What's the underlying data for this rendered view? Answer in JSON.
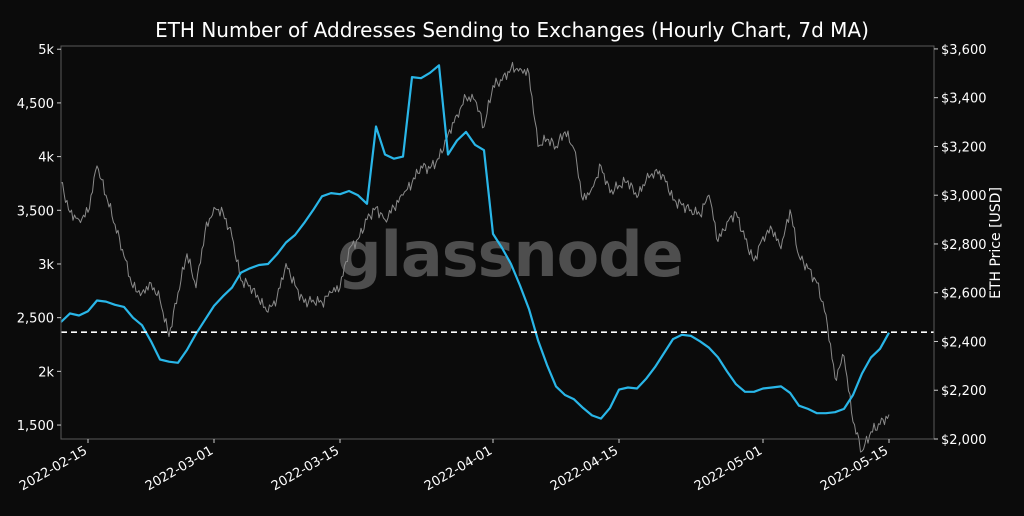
{
  "chart_data": {
    "type": "line",
    "title": "ETH Number of Addresses Sending to Exchanges (Hourly Chart, 7d MA)",
    "xlabel": "",
    "ylabel_left": "",
    "ylabel_right": "ETH Price [USD]",
    "watermark": "glassnode",
    "x_range": [
      "2022-02-12",
      "2022-05-20"
    ],
    "x_ticks": [
      "2022-02-15",
      "2022-03-01",
      "2022-03-15",
      "2022-04-01",
      "2022-04-15",
      "2022-05-01",
      "2022-05-15"
    ],
    "y_left": {
      "range": [
        1370,
        5030
      ],
      "ticks": [
        {
          "value": 1500,
          "label": "1,500"
        },
        {
          "value": 2000,
          "label": "2k"
        },
        {
          "value": 2500,
          "label": "2,500"
        },
        {
          "value": 3000,
          "label": "3k"
        },
        {
          "value": 3500,
          "label": "3,500"
        },
        {
          "value": 4000,
          "label": "4k"
        },
        {
          "value": 4500,
          "label": "4,500"
        },
        {
          "value": 5000,
          "label": "5k"
        }
      ]
    },
    "y_right": {
      "range": [
        2000,
        3612
      ],
      "ticks": [
        {
          "value": 2000,
          "label": "$2,000"
        },
        {
          "value": 2200,
          "label": "$2,200"
        },
        {
          "value": 2400,
          "label": "$2,400"
        },
        {
          "value": 2600,
          "label": "$2,600"
        },
        {
          "value": 2800,
          "label": "$2,800"
        },
        {
          "value": 3000,
          "label": "$3,000"
        },
        {
          "value": 3200,
          "label": "$3,200"
        },
        {
          "value": 3400,
          "label": "$3,400"
        },
        {
          "value": 3600,
          "label": "$3,600"
        }
      ]
    },
    "reference_line": {
      "axis": "left",
      "value": 2365,
      "style": "dashed",
      "color": "#ffffff"
    },
    "series": [
      {
        "name": "",
        "axis": "left",
        "color": "#29b6e8",
        "points": [
          [
            "2022-02-12",
            2460
          ],
          [
            "2022-02-13",
            2540
          ],
          [
            "2022-02-14",
            2520
          ],
          [
            "2022-02-15",
            2560
          ],
          [
            "2022-02-16",
            2660
          ],
          [
            "2022-02-17",
            2650
          ],
          [
            "2022-02-18",
            2620
          ],
          [
            "2022-02-19",
            2600
          ],
          [
            "2022-02-20",
            2500
          ],
          [
            "2022-02-21",
            2430
          ],
          [
            "2022-02-22",
            2280
          ],
          [
            "2022-02-23",
            2110
          ],
          [
            "2022-02-24",
            2090
          ],
          [
            "2022-02-25",
            2080
          ],
          [
            "2022-02-26",
            2200
          ],
          [
            "2022-02-27",
            2350
          ],
          [
            "2022-02-28",
            2480
          ],
          [
            "2022-03-01",
            2610
          ],
          [
            "2022-03-02",
            2700
          ],
          [
            "2022-03-03",
            2780
          ],
          [
            "2022-03-04",
            2920
          ],
          [
            "2022-03-05",
            2960
          ],
          [
            "2022-03-06",
            2990
          ],
          [
            "2022-03-07",
            3000
          ],
          [
            "2022-03-08",
            3090
          ],
          [
            "2022-03-09",
            3200
          ],
          [
            "2022-03-10",
            3270
          ],
          [
            "2022-03-11",
            3380
          ],
          [
            "2022-03-12",
            3500
          ],
          [
            "2022-03-13",
            3630
          ],
          [
            "2022-03-14",
            3660
          ],
          [
            "2022-03-15",
            3650
          ],
          [
            "2022-03-16",
            3680
          ],
          [
            "2022-03-17",
            3640
          ],
          [
            "2022-03-18",
            3560
          ],
          [
            "2022-03-19",
            4280
          ],
          [
            "2022-03-20",
            4020
          ],
          [
            "2022-03-21",
            3980
          ],
          [
            "2022-03-22",
            4000
          ],
          [
            "2022-03-23",
            4740
          ],
          [
            "2022-03-24",
            4730
          ],
          [
            "2022-03-25",
            4780
          ],
          [
            "2022-03-26",
            4850
          ],
          [
            "2022-03-27",
            4020
          ],
          [
            "2022-03-28",
            4150
          ],
          [
            "2022-03-29",
            4230
          ],
          [
            "2022-03-30",
            4110
          ],
          [
            "2022-03-31",
            4060
          ],
          [
            "2022-04-01",
            3280
          ],
          [
            "2022-04-02",
            3150
          ],
          [
            "2022-04-03",
            3000
          ],
          [
            "2022-04-04",
            2800
          ],
          [
            "2022-04-05",
            2580
          ],
          [
            "2022-04-06",
            2290
          ],
          [
            "2022-04-07",
            2060
          ],
          [
            "2022-04-08",
            1860
          ],
          [
            "2022-04-09",
            1780
          ],
          [
            "2022-04-10",
            1740
          ],
          [
            "2022-04-11",
            1660
          ],
          [
            "2022-04-12",
            1590
          ],
          [
            "2022-04-13",
            1560
          ],
          [
            "2022-04-14",
            1660
          ],
          [
            "2022-04-15",
            1830
          ],
          [
            "2022-04-16",
            1850
          ],
          [
            "2022-04-17",
            1840
          ],
          [
            "2022-04-18",
            1930
          ],
          [
            "2022-04-19",
            2040
          ],
          [
            "2022-04-20",
            2170
          ],
          [
            "2022-04-21",
            2300
          ],
          [
            "2022-04-22",
            2340
          ],
          [
            "2022-04-23",
            2330
          ],
          [
            "2022-04-24",
            2280
          ],
          [
            "2022-04-25",
            2220
          ],
          [
            "2022-04-26",
            2130
          ],
          [
            "2022-04-27",
            2000
          ],
          [
            "2022-04-28",
            1880
          ],
          [
            "2022-04-29",
            1810
          ],
          [
            "2022-04-30",
            1810
          ],
          [
            "2022-05-01",
            1840
          ],
          [
            "2022-05-02",
            1850
          ],
          [
            "2022-05-03",
            1860
          ],
          [
            "2022-05-04",
            1800
          ],
          [
            "2022-05-05",
            1680
          ],
          [
            "2022-05-06",
            1650
          ],
          [
            "2022-05-07",
            1610
          ],
          [
            "2022-05-08",
            1610
          ],
          [
            "2022-05-09",
            1620
          ],
          [
            "2022-05-10",
            1650
          ],
          [
            "2022-05-11",
            1780
          ],
          [
            "2022-05-12",
            1980
          ],
          [
            "2022-05-13",
            2130
          ],
          [
            "2022-05-14",
            2210
          ],
          [
            "2022-05-15",
            2360
          ]
        ]
      },
      {
        "name": "",
        "axis": "right",
        "color": "#8a8a8a",
        "points": [
          [
            "2022-02-12",
            3050
          ],
          [
            "2022-02-13",
            2930
          ],
          [
            "2022-02-14",
            2900
          ],
          [
            "2022-02-15",
            2930
          ],
          [
            "2022-02-16",
            3120
          ],
          [
            "2022-02-17",
            3000
          ],
          [
            "2022-02-18",
            2880
          ],
          [
            "2022-02-19",
            2750
          ],
          [
            "2022-02-20",
            2620
          ],
          [
            "2022-02-21",
            2600
          ],
          [
            "2022-02-22",
            2640
          ],
          [
            "2022-02-23",
            2570
          ],
          [
            "2022-02-24",
            2420
          ],
          [
            "2022-02-25",
            2600
          ],
          [
            "2022-02-26",
            2760
          ],
          [
            "2022-02-27",
            2620
          ],
          [
            "2022-02-28",
            2850
          ],
          [
            "2022-03-01",
            2950
          ],
          [
            "2022-03-02",
            2930
          ],
          [
            "2022-03-03",
            2830
          ],
          [
            "2022-03-04",
            2650
          ],
          [
            "2022-03-05",
            2630
          ],
          [
            "2022-03-06",
            2570
          ],
          [
            "2022-03-07",
            2520
          ],
          [
            "2022-03-08",
            2580
          ],
          [
            "2022-03-09",
            2720
          ],
          [
            "2022-03-10",
            2630
          ],
          [
            "2022-03-11",
            2560
          ],
          [
            "2022-03-12",
            2570
          ],
          [
            "2022-03-13",
            2560
          ],
          [
            "2022-03-14",
            2600
          ],
          [
            "2022-03-15",
            2620
          ],
          [
            "2022-03-16",
            2780
          ],
          [
            "2022-03-17",
            2820
          ],
          [
            "2022-03-18",
            2900
          ],
          [
            "2022-03-19",
            2950
          ],
          [
            "2022-03-20",
            2900
          ],
          [
            "2022-03-21",
            2950
          ],
          [
            "2022-03-22",
            3000
          ],
          [
            "2022-03-23",
            3050
          ],
          [
            "2022-03-24",
            3120
          ],
          [
            "2022-03-25",
            3110
          ],
          [
            "2022-03-26",
            3150
          ],
          [
            "2022-03-27",
            3250
          ],
          [
            "2022-03-28",
            3330
          ],
          [
            "2022-03-29",
            3400
          ],
          [
            "2022-03-30",
            3390
          ],
          [
            "2022-03-31",
            3280
          ],
          [
            "2022-04-01",
            3450
          ],
          [
            "2022-04-02",
            3470
          ],
          [
            "2022-04-03",
            3520
          ],
          [
            "2022-04-04",
            3520
          ],
          [
            "2022-04-05",
            3500
          ],
          [
            "2022-04-06",
            3200
          ],
          [
            "2022-04-07",
            3230
          ],
          [
            "2022-04-08",
            3200
          ],
          [
            "2022-04-09",
            3260
          ],
          [
            "2022-04-10",
            3190
          ],
          [
            "2022-04-11",
            2980
          ],
          [
            "2022-04-12",
            3030
          ],
          [
            "2022-04-13",
            3120
          ],
          [
            "2022-04-14",
            3010
          ],
          [
            "2022-04-15",
            3040
          ],
          [
            "2022-04-16",
            3060
          ],
          [
            "2022-04-17",
            2990
          ],
          [
            "2022-04-18",
            3060
          ],
          [
            "2022-04-19",
            3100
          ],
          [
            "2022-04-20",
            3080
          ],
          [
            "2022-04-21",
            2980
          ],
          [
            "2022-04-22",
            2960
          ],
          [
            "2022-04-23",
            2940
          ],
          [
            "2022-04-24",
            2920
          ],
          [
            "2022-04-25",
            3000
          ],
          [
            "2022-04-26",
            2810
          ],
          [
            "2022-04-27",
            2890
          ],
          [
            "2022-04-28",
            2930
          ],
          [
            "2022-04-29",
            2820
          ],
          [
            "2022-04-30",
            2730
          ],
          [
            "2022-05-01",
            2830
          ],
          [
            "2022-05-02",
            2860
          ],
          [
            "2022-05-03",
            2780
          ],
          [
            "2022-05-04",
            2940
          ],
          [
            "2022-05-05",
            2750
          ],
          [
            "2022-05-06",
            2700
          ],
          [
            "2022-05-07",
            2640
          ],
          [
            "2022-05-08",
            2510
          ],
          [
            "2022-05-09",
            2250
          ],
          [
            "2022-05-10",
            2340
          ],
          [
            "2022-05-11",
            2070
          ],
          [
            "2022-05-12",
            1950
          ],
          [
            "2022-05-13",
            2030
          ],
          [
            "2022-05-14",
            2060
          ],
          [
            "2022-05-15",
            2100
          ]
        ]
      }
    ]
  }
}
